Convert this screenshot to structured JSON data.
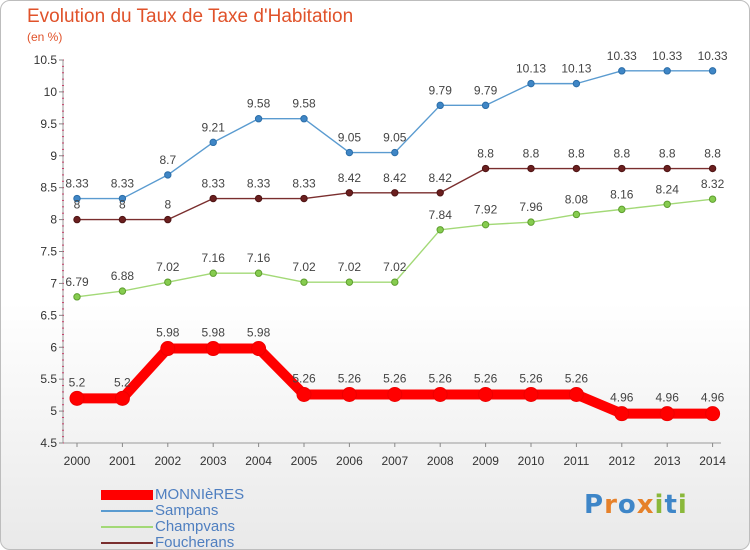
{
  "title": "Evolution du Taux de Taxe d'Habitation",
  "unit": "(en %)",
  "logo": {
    "text": "Proxiti",
    "colors": [
      "#3e86c8",
      "#e6812a",
      "#3e86c8",
      "#e6812a",
      "#8ab83a",
      "#3e86c8",
      "#8ab83a"
    ]
  },
  "chart_data": {
    "type": "line",
    "x": [
      2000,
      2001,
      2002,
      2003,
      2004,
      2005,
      2006,
      2007,
      2008,
      2009,
      2010,
      2011,
      2012,
      2013,
      2014
    ],
    "ylim": [
      4.5,
      10.5
    ],
    "yticks": [
      "4.5",
      "5",
      "5.5",
      "6",
      "6.5",
      "7",
      "7.5",
      "8",
      "8.5",
      "9",
      "9.5",
      "10",
      "10.5"
    ],
    "grid": false,
    "legend_position": "bottom-left",
    "series": [
      {
        "name": "MONNIèRES",
        "color": "#ff0000",
        "values": [
          5.2,
          5.2,
          5.98,
          5.98,
          5.98,
          5.26,
          5.26,
          5.26,
          5.26,
          5.26,
          5.26,
          5.26,
          4.96,
          4.96,
          4.96
        ],
        "labels": [
          "5.2",
          "5.2",
          "5.98",
          "5.98",
          "5.98",
          "5.26",
          "5.26",
          "5.26",
          "5.26",
          "5.26",
          "5.26",
          "5.26",
          "4.96",
          "4.96",
          "4.96"
        ]
      },
      {
        "name": "Sampans",
        "color": "#5a9bd0",
        "values": [
          8.33,
          8.33,
          8.7,
          9.21,
          9.58,
          9.58,
          9.05,
          9.05,
          9.79,
          9.79,
          10.13,
          10.13,
          10.33,
          10.33,
          10.33
        ],
        "labels": [
          "8.33",
          "8.33",
          "8.7",
          "9.21",
          "9.58",
          "9.58",
          "9.05",
          "9.05",
          "9.79",
          "9.79",
          "10.13",
          "10.13",
          "10.33",
          "10.33",
          "10.33"
        ]
      },
      {
        "name": "Champvans",
        "color": "#a3d977",
        "values": [
          6.79,
          6.88,
          7.02,
          7.16,
          7.16,
          7.02,
          7.02,
          7.02,
          7.84,
          7.92,
          7.96,
          8.08,
          8.16,
          8.24,
          8.32
        ],
        "labels": [
          "6.79",
          "6.88",
          "7.02",
          "7.16",
          "7.16",
          "7.02",
          "7.02",
          "7.02",
          "7.84",
          "7.92",
          "7.96",
          "8.08",
          "8.16",
          "8.24",
          "8.32"
        ]
      },
      {
        "name": "Foucherans",
        "color": "#7a2e2e",
        "values": [
          8,
          8,
          8,
          8.33,
          8.33,
          8.33,
          8.42,
          8.42,
          8.42,
          8.8,
          8.8,
          8.8,
          8.8,
          8.8,
          8.8
        ],
        "labels": [
          "8",
          "8",
          "8",
          "8.33",
          "8.33",
          "8.33",
          "8.42",
          "8.42",
          "8.42",
          "8.8",
          "8.8",
          "8.8",
          "8.8",
          "8.8",
          "8.8"
        ]
      }
    ]
  }
}
